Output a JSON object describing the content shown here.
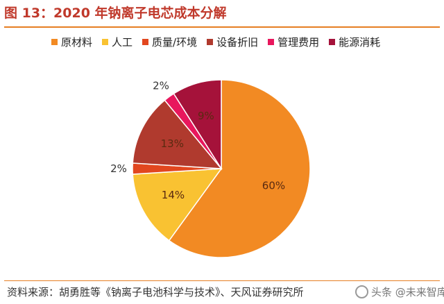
{
  "title": "图 13：2020 年钠离子电芯成本分解",
  "source": "资料来源：胡勇胜等《钠离子电池科学与技术》、天风证券研究所",
  "watermark": "头条 @未来智库",
  "chart_data": {
    "type": "pie",
    "title": "",
    "legend_position": "top",
    "slices": [
      {
        "name": "原材料",
        "value": 60,
        "label": "60%",
        "color": "#f28a23"
      },
      {
        "name": "人工",
        "value": 14,
        "label": "14%",
        "color": "#f9c232"
      },
      {
        "name": "质量/环境",
        "value": 2,
        "label": "2%",
        "color": "#e2471f"
      },
      {
        "name": "设备折旧",
        "value": 13,
        "label": "13%",
        "color": "#b03a2e"
      },
      {
        "name": "管理费用",
        "value": 2,
        "label": "2%",
        "color": "#e8175d"
      },
      {
        "name": "能源消耗",
        "value": 9,
        "label": "9%",
        "color": "#a5123a"
      }
    ]
  }
}
